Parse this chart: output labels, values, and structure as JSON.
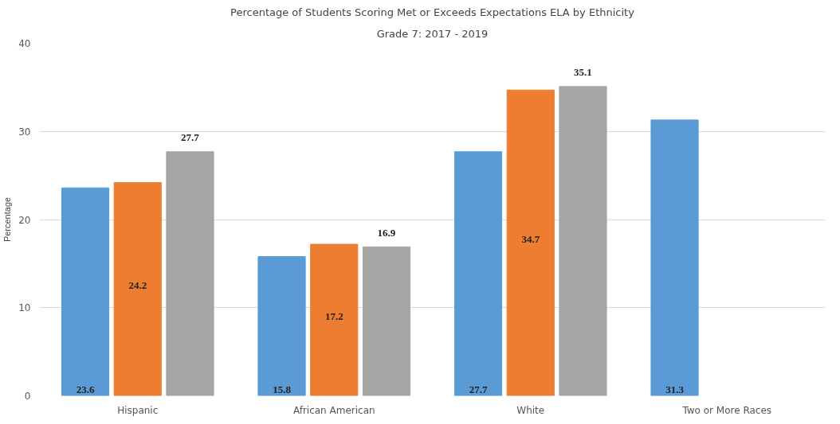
{
  "chart_data": {
    "type": "bar",
    "title": "Percentage of Students Scoring Met or Exceeds Expectations ELA by Ethnicity",
    "subtitle": "Grade 7: 2017 - 2019",
    "ylabel": "Percentage",
    "categories": [
      "Hispanic",
      "African American",
      "White",
      "Two or More Races"
    ],
    "series": [
      {
        "color": "#5b9bd5",
        "values": [
          23.6,
          15.8,
          27.7,
          31.3
        ]
      },
      {
        "color": "#ed7d31",
        "values": [
          24.2,
          17.2,
          34.7,
          null
        ]
      },
      {
        "color": "#a5a5a5",
        "values": [
          27.7,
          16.9,
          35.1,
          null
        ]
      }
    ],
    "ylim": [
      0,
      40
    ],
    "yticks": [
      0,
      10,
      20,
      30,
      40
    ],
    "grid": "y",
    "data_labels": true
  }
}
